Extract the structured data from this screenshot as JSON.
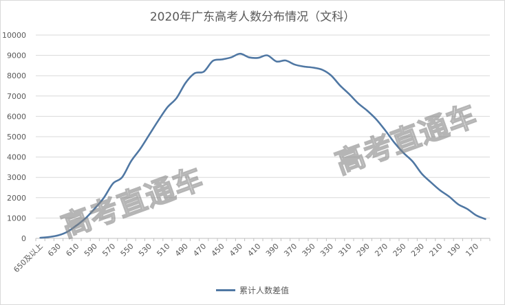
{
  "chart_data": {
    "type": "line",
    "title": "2020年广东高考人数分布情况（文科）",
    "xlabel": "",
    "ylabel": "",
    "ylim": [
      0,
      10000
    ],
    "yticks": [
      0,
      1000,
      2000,
      3000,
      4000,
      5000,
      6000,
      7000,
      8000,
      9000,
      10000
    ],
    "grid": true,
    "legend_position": "bottom",
    "color": "#4f77a3",
    "categories": [
      "650及以上",
      "640",
      "630",
      "620",
      "610",
      "600",
      "590",
      "580",
      "570",
      "560",
      "550",
      "540",
      "530",
      "520",
      "510",
      "500",
      "490",
      "480",
      "470",
      "460",
      "450",
      "440",
      "430",
      "420",
      "410",
      "400",
      "390",
      "380",
      "370",
      "360",
      "350",
      "340",
      "330",
      "320",
      "310",
      "300",
      "290",
      "280",
      "270",
      "260",
      "250",
      "240",
      "230",
      "220",
      "210",
      "200",
      "190",
      "180",
      "170",
      "160"
    ],
    "tick_labels_shown": [
      "650及以上",
      "630",
      "610",
      "590",
      "570",
      "550",
      "530",
      "510",
      "490",
      "470",
      "450",
      "430",
      "410",
      "390",
      "370",
      "350",
      "330",
      "310",
      "290",
      "270",
      "250",
      "230",
      "210",
      "190",
      "170"
    ],
    "series": [
      {
        "name": "累计人数差值",
        "values": [
          30,
          70,
          150,
          330,
          640,
          1000,
          1470,
          2000,
          2700,
          3000,
          3800,
          4400,
          5100,
          5800,
          6450,
          6900,
          7650,
          8120,
          8200,
          8730,
          8800,
          8900,
          9080,
          8900,
          8880,
          9000,
          8700,
          8750,
          8550,
          8450,
          8400,
          8300,
          8020,
          7520,
          7100,
          6640,
          6280,
          5850,
          5300,
          4700,
          4200,
          3780,
          3180,
          2760,
          2370,
          2060,
          1680,
          1450,
          1130,
          950
        ]
      }
    ]
  },
  "watermark": {
    "left_text": "高考直通车",
    "right_text": "高考直通车"
  }
}
